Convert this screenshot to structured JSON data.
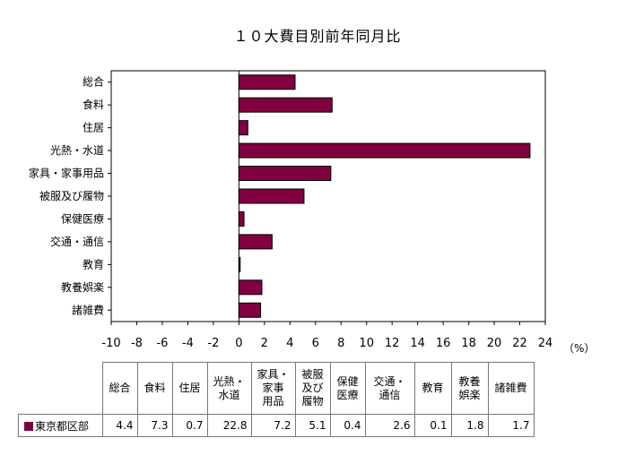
{
  "chart_data": {
    "type": "bar",
    "orientation": "horizontal",
    "title": "１０大費目別前年同月比",
    "unit_label": "（%）",
    "categories": [
      "総合",
      "食料",
      "住居",
      "光熱・水道",
      "家具・家事用品",
      "被服及び履物",
      "保健医療",
      "交通・通信",
      "教育",
      "教養娯楽",
      "諸雑費"
    ],
    "series": [
      {
        "name": "東京都区部",
        "values": [
          4.4,
          7.3,
          0.7,
          22.8,
          7.2,
          5.1,
          0.4,
          2.6,
          0.1,
          1.8,
          1.7
        ]
      }
    ],
    "xlim": [
      -10,
      24
    ],
    "xticks": [
      -10,
      -8,
      -6,
      -4,
      -2,
      0,
      2,
      4,
      6,
      8,
      10,
      12,
      14,
      16,
      18,
      20,
      22,
      24
    ],
    "grid": false,
    "bar_color": "#800040"
  },
  "table": {
    "headers": [
      "総合",
      "食料",
      "住居",
      "光熱・\n水道",
      "家具・\n家事\n用品",
      "被服\n及び\n履物",
      "保健\n医療",
      "交通・\n通信",
      "教育",
      "教養\n娯楽",
      "諸雑費"
    ],
    "row_label": "東京都区部",
    "row_values": [
      "4.4",
      "7.3",
      "0.7",
      "22.8",
      "7.2",
      "5.1",
      "0.4",
      "2.6",
      "0.1",
      "1.8",
      "1.7"
    ]
  }
}
